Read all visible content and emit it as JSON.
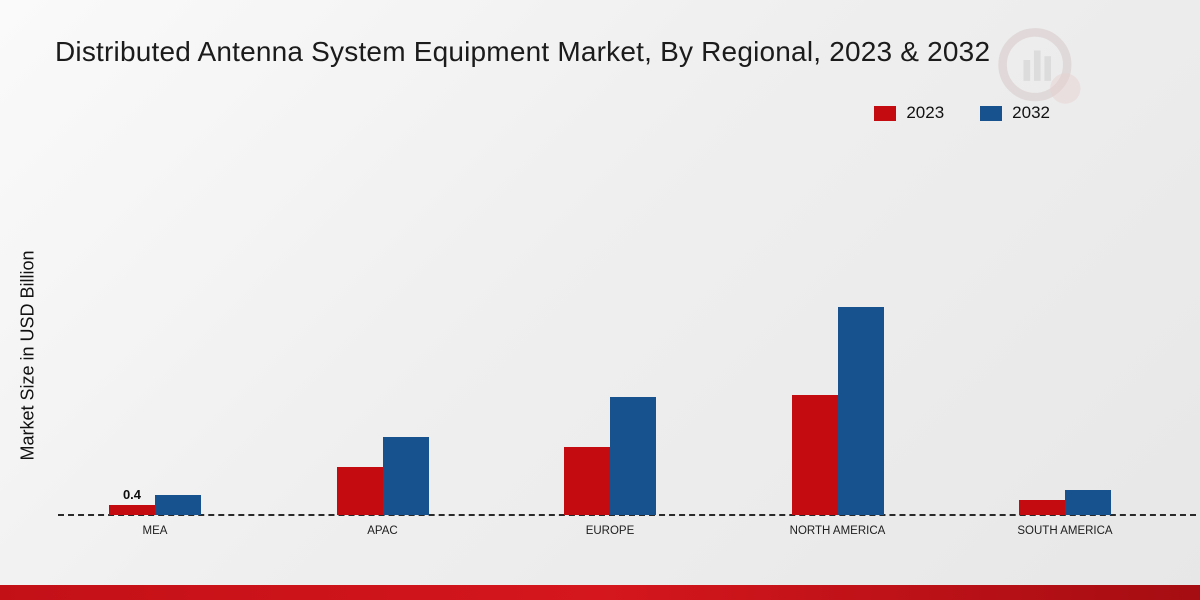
{
  "title": "Distributed Antenna System Equipment Market, By Regional, 2023 & 2032",
  "ylabel": "Market Size in USD Billion",
  "legend": {
    "items": [
      {
        "label": "2023",
        "color": "#c40b0f"
      },
      {
        "label": "2032",
        "color": "#17518e"
      }
    ]
  },
  "colors": {
    "series_2023": "#c40b0f",
    "series_2032": "#17518e",
    "footer": "#c31017",
    "baseline": "#2a2a2a"
  },
  "chart_data": {
    "type": "bar",
    "title": "Distributed Antenna System Equipment Market, By Regional, 2023 & 2032",
    "xlabel": "",
    "ylabel": "Market Size in USD Billion",
    "categories": [
      "MEA",
      "APAC",
      "EUROPE",
      "NORTH AMERICA",
      "SOUTH AMERICA"
    ],
    "series": [
      {
        "name": "2023",
        "color": "#c40b0f",
        "values": [
          0.4,
          1.9,
          2.7,
          4.8,
          0.6
        ]
      },
      {
        "name": "2032",
        "color": "#17518e",
        "values": [
          0.8,
          3.1,
          4.7,
          8.3,
          1.0
        ]
      }
    ],
    "bar_labels": [
      {
        "category": "MEA",
        "series": "2023",
        "text": "0.4"
      }
    ],
    "ylim": [
      0,
      10
    ],
    "grid": false,
    "legend_position": "top-right",
    "baseline_style": "dashed"
  }
}
